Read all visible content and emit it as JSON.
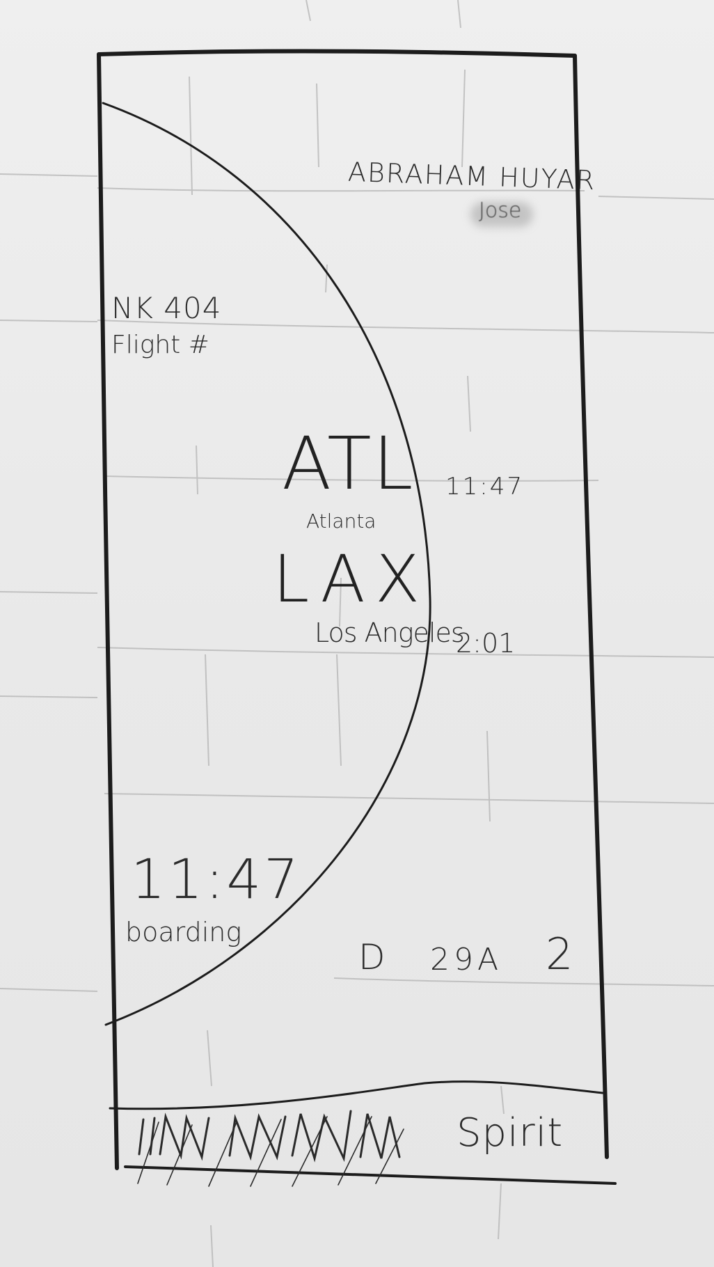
{
  "passenger": {
    "name": "ABRAHAM HUYAR",
    "subtitle": "Jose"
  },
  "flight": {
    "number": "NK 404",
    "label": "Flight #"
  },
  "route": {
    "origin_code": "ATL",
    "origin_city": "Atlanta",
    "origin_time": "11:47",
    "destination_code": "LAX",
    "destination_city": "Los Angeles",
    "destination_time": "2:01"
  },
  "boarding": {
    "time": "11:47",
    "label": "boarding"
  },
  "details": {
    "gate": "D",
    "seat": "29A",
    "zone": "2"
  },
  "footer": {
    "airline": "Spirit"
  },
  "colors": {
    "paper": "#ebebeb",
    "pencil": "#1e1e1e",
    "grid": "#b9b9b9"
  }
}
